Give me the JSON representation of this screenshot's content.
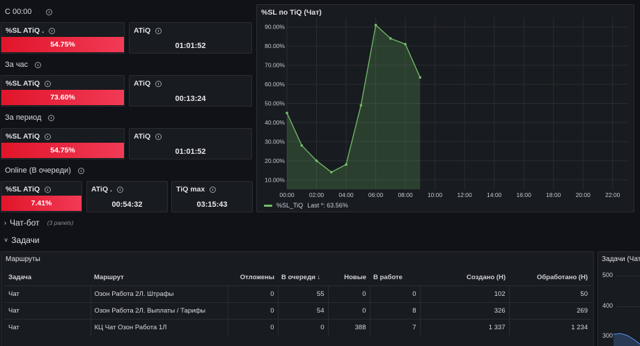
{
  "rows": {
    "since": "С 00:00",
    "hour": "За час",
    "period": "За период",
    "online": "Online (В очереди)"
  },
  "since_panels": {
    "sl_title": "%SL ATiQ .",
    "sl_value": "54.75%",
    "atiq_title": "ATiQ",
    "atiq_value": "01:01:52"
  },
  "hour_panels": {
    "sl_title": "%SL ATiQ",
    "sl_value": "73.60%",
    "atiq_title": "ATiQ",
    "atiq_value": "00:13:24"
  },
  "period_panels": {
    "sl_title": "%SL ATiQ",
    "sl_value": "54.75%",
    "atiq_title": "ATiQ",
    "atiq_value": "01:01:52"
  },
  "online_panels": {
    "sl_title": "%SL ATiQ",
    "sl_value": "7.41%",
    "atiq_title": "ATiQ .",
    "atiq_value": "00:54:32",
    "tiqmax_title": "TiQ max",
    "tiqmax_value": "03:15:43"
  },
  "colors": {
    "bar_red": "#e0152a",
    "line_green": "#73bf69",
    "background": "#111217"
  },
  "chart_panel": {
    "title": "%SL по TiQ (Чат)",
    "legend_label": "%SL_TiQ",
    "legend_last": "Last *: 63.56%"
  },
  "chart_data": {
    "type": "area",
    "title": "%SL по TiQ (Чат)",
    "y_ticks": [
      "10.00%",
      "20.00%",
      "30.00%",
      "40.00%",
      "50.00%",
      "60.00%",
      "70.00%",
      "80.00%",
      "90.00%"
    ],
    "x_ticks": [
      "00:00",
      "02:00",
      "04:00",
      "06:00",
      "08:00",
      "10:00",
      "12:00",
      "14:00",
      "16:00",
      "18:00",
      "20:00",
      "22:00"
    ],
    "ylim": [
      5,
      95
    ],
    "xlim_hours": [
      0,
      23
    ],
    "grid": true,
    "legend": "bottom-left",
    "series": [
      {
        "name": "%SL_TiQ",
        "x": [
          0,
          1,
          2,
          3,
          4,
          5,
          6,
          7,
          8,
          9
        ],
        "y": [
          45,
          28,
          20,
          14,
          18,
          49,
          91,
          84,
          81,
          63.56
        ]
      }
    ]
  },
  "sections": {
    "chatbot": "Чат-бот",
    "chatbot_sub": "(3 panels)",
    "tasks": "Задачи"
  },
  "routes_panel": {
    "title": "Маршруты",
    "columns": [
      "Задача",
      "Маршрут",
      "Отложены",
      "В очереди ↓",
      "Новые",
      "В работе",
      "Создано (Н)",
      "Обработано (Н)"
    ],
    "rows": [
      [
        "Чат",
        "Озон Работа 2Л. Штрафы",
        "0",
        "55",
        "0",
        "0",
        "102",
        "50"
      ],
      [
        "Чат",
        "Озон Работа 2Л. Выплаты / Тарифы",
        "0",
        "54",
        "0",
        "8",
        "326",
        "269"
      ],
      [
        "Чат",
        "КЦ Чат Озон Работа 1Л",
        "0",
        "0",
        "388",
        "7",
        "1 337",
        "1 234"
      ]
    ]
  },
  "tasks_panel": {
    "title": "Задачи (Чат",
    "y_ticks": [
      "500",
      "400",
      "300"
    ]
  }
}
